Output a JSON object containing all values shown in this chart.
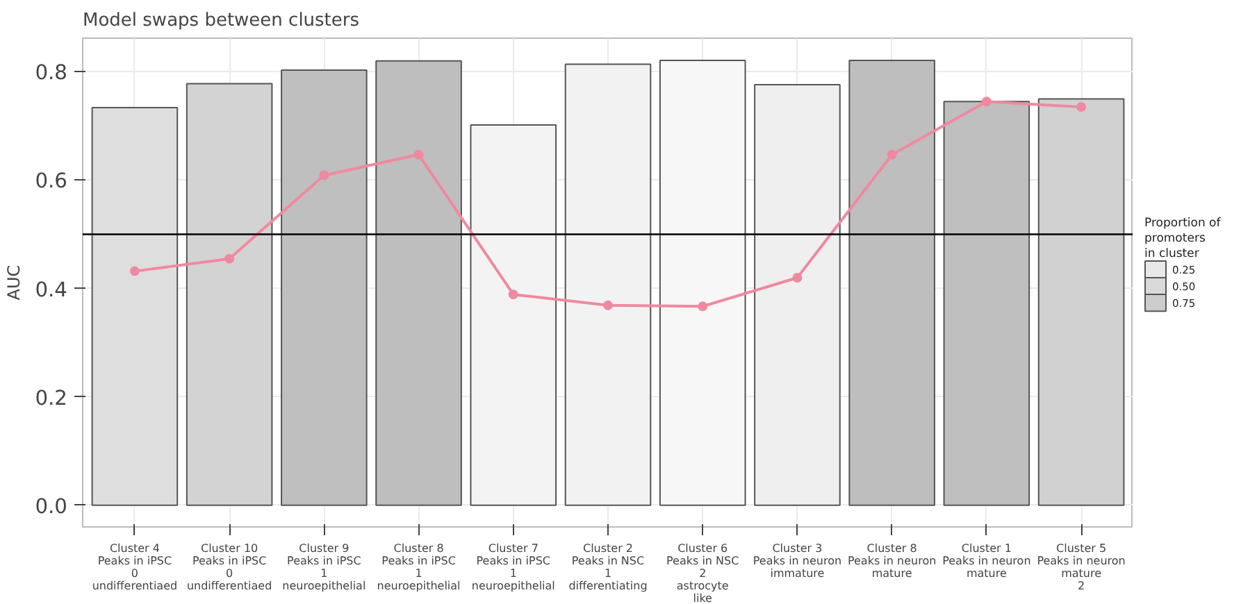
{
  "chart_data": {
    "type": "bar",
    "title": "Model swaps between clusters",
    "ylabel": "AUC",
    "legend_title": "Proportion of\npromoters\nin cluster",
    "categories": [
      "Cluster 4\nPeaks in iPSC\n0\nundifferentiaed",
      "Cluster 10\nPeaks in iPSC\n0\nundifferentiaed",
      "Cluster 9\nPeaks in iPSC\n1\nneuroepithelial",
      "Cluster 8\nPeaks in iPSC\n1\nneuroepithelial",
      "Cluster 7\nPeaks in iPSC\n1\nneuroepithelial",
      "Cluster 2\nPeaks in NSC\n1\ndifferentiating",
      "Cluster 6\nPeaks in NSC\n2\nastrocyte\nlike",
      "Cluster 3\nPeaks in neuron\nimmature",
      "Cluster 8\nPeaks in neuron\nmature",
      "Cluster 1\nPeaks in neuron\nmature",
      "Cluster 5\nPeaks in neuron\nmature\n2"
    ],
    "series": [
      {
        "type": "bar",
        "colors": [
          "#dedede",
          "#d3d3d3",
          "#bfbfbf",
          "#bebebe",
          "#f3f3f3",
          "#f2f2f2",
          "#f7f7f7",
          "#efefef",
          "#bebebe",
          "#bfbfbf",
          "#d1d1d1"
        ],
        "values": [
          0.734,
          0.778,
          0.803,
          0.82,
          0.702,
          0.814,
          0.821,
          0.776,
          0.821,
          0.745,
          0.75
        ]
      },
      {
        "type": "line",
        "color": "#f0899f",
        "marker": "circle",
        "values": [
          0.432,
          0.455,
          0.609,
          0.647,
          0.389,
          0.369,
          0.367,
          0.42,
          0.647,
          0.745,
          0.735
        ]
      }
    ],
    "cticks": [
      {
        "value": 0.25,
        "label": "0.25"
      },
      {
        "value": 0.5,
        "label": "0.50"
      },
      {
        "value": 0.75,
        "label": "0.75"
      }
    ],
    "ylim": [
      -0.04,
      0.862
    ],
    "yticks": [
      {
        "value": 0,
        "label": "0.0"
      },
      {
        "value": 0.2,
        "label": "0.2"
      },
      {
        "value": 0.4,
        "label": "0.4"
      },
      {
        "value": 0.6,
        "label": "0.6"
      },
      {
        "value": 0.8,
        "label": "0.8"
      }
    ],
    "ref_lines": [
      {
        "axis": "y",
        "value": 0.5,
        "color": "#000000"
      }
    ],
    "grid": true
  }
}
